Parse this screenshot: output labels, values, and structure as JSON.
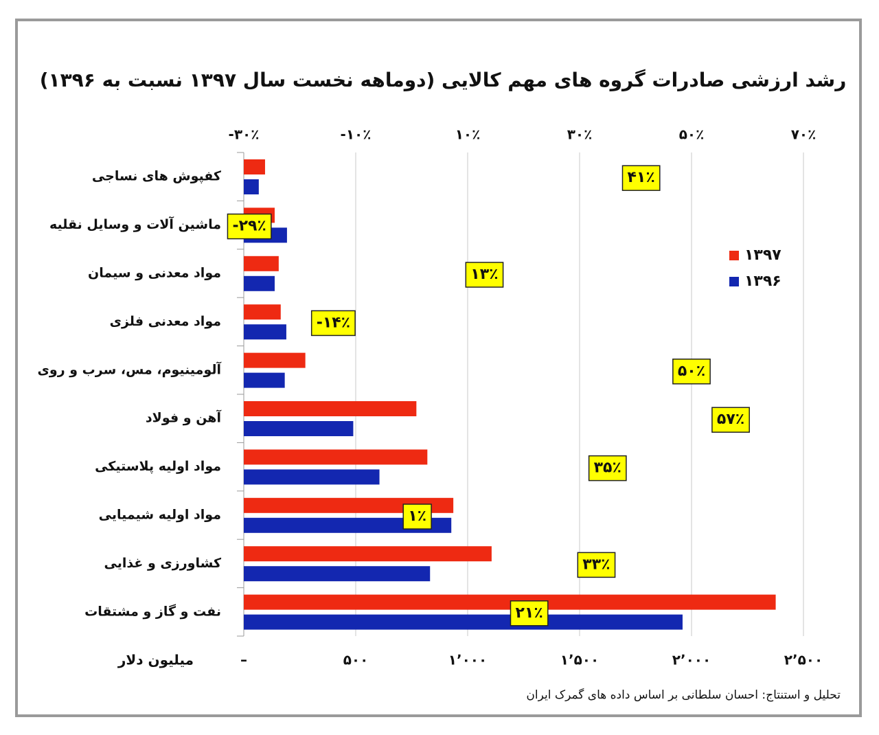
{
  "chart_data": {
    "type": "hbar",
    "title": "رشد ارزشی صادرات گروه های مهم کالایی (دوماهه نخست سال ۱۳۹۷ نسبت به ۱۳۹۶)",
    "x_label": "میلیون دلار",
    "source": "تحلیل و استنتاج: احسان سلطانی بر اساس داده های گمرک ایران",
    "categories": [
      "کفپوش های نساجی",
      "ماشین آلات و وسایل نقلیه",
      "مواد معدنی و سیمان",
      "مواد معدنی فلزی",
      "آلومینیوم، مس، سرب و روی",
      "آهن و فولاد",
      "مواد اولیه پلاستیکی",
      "مواد اولیه شیمیایی",
      "کشاورزی و غذایی",
      "نفت و گاز و مشتقات"
    ],
    "series": [
      {
        "name": "۱۳۹۷",
        "color": "#ee2a12",
        "values": [
          95,
          138,
          156,
          165,
          275,
          771,
          820,
          936,
          1107,
          2376
        ]
      },
      {
        "name": "۱۳۹۶",
        "color": "#1327b0",
        "values": [
          67,
          193,
          138,
          190,
          183,
          489,
          606,
          927,
          832,
          1960
        ]
      }
    ],
    "xlim": [
      0,
      2500
    ],
    "xticks": [
      {
        "value": 0,
        "label": "–"
      },
      {
        "value": 500,
        "label": "۵۰۰"
      },
      {
        "value": 1000,
        "label": "۱٬۰۰۰"
      },
      {
        "value": 1500,
        "label": "۱٬۵۰۰"
      },
      {
        "value": 2000,
        "label": "۲٬۰۰۰"
      },
      {
        "value": 2500,
        "label": "۲٬۵۰۰"
      }
    ],
    "growth": {
      "values": [
        41,
        -29,
        13,
        -14,
        50,
        57,
        35,
        1,
        33,
        21
      ],
      "value_labels": [
        "۴۱٪",
        "-۲۹٪",
        "۱۳٪",
        "-۱۴٪",
        "۵۰٪",
        "۵۷٪",
        "۳۵٪",
        "۱٪",
        "۳۳٪",
        "۲۱٪"
      ],
      "color": "#ffff00"
    },
    "x2lim": [
      -30,
      70
    ],
    "x2ticks": [
      {
        "value": -30,
        "label": "-۳۰٪"
      },
      {
        "value": -10,
        "label": "-۱۰٪"
      },
      {
        "value": 10,
        "label": "۱۰٪"
      },
      {
        "value": 30,
        "label": "۳۰٪"
      },
      {
        "value": 50,
        "label": "۵۰٪"
      },
      {
        "value": 70,
        "label": "۷۰٪"
      }
    ],
    "grid": true,
    "legend": "right"
  }
}
